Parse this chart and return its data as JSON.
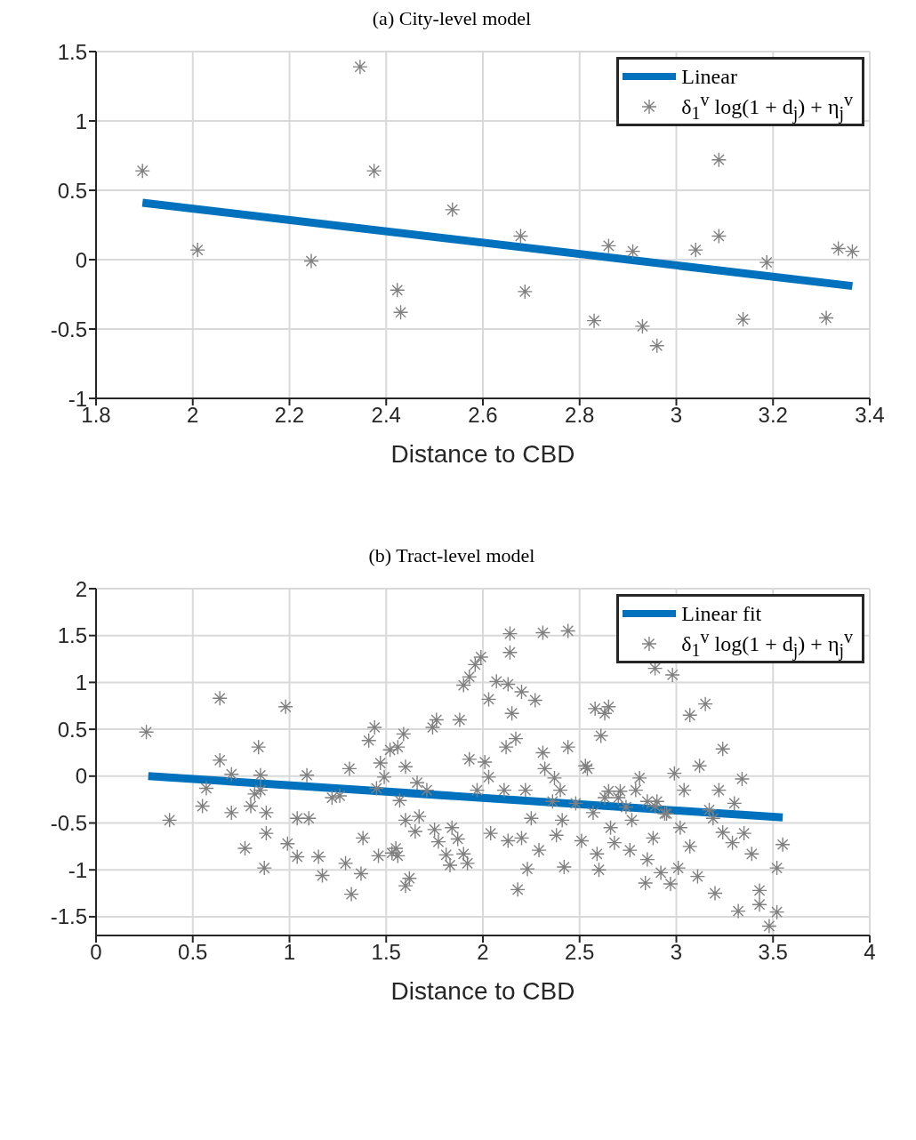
{
  "chart_data": [
    {
      "type": "scatter",
      "title": "(a) City-level model",
      "xlabel": "Distance to CBD",
      "xlim": [
        1.8,
        3.4
      ],
      "xticks": [
        1.8,
        2,
        2.2,
        2.4,
        2.6,
        2.8,
        3,
        3.2,
        3.4
      ],
      "ylim": [
        -1,
        1.5
      ],
      "yticks": [
        -1,
        -0.5,
        0,
        0.5,
        1,
        1.5
      ],
      "grid": true,
      "legend": "top right",
      "series": [
        {
          "name": "Linear",
          "type": "line",
          "color": "#0072bd",
          "line_style": "solid",
          "marker": "none",
          "x": [
            1.896,
            3.364
          ],
          "values": [
            0.41,
            -0.19
          ]
        },
        {
          "name": "δ$_{1}$$^{v}$ log(1 + d$_{j}$) + η$_{j}$$^{v}$",
          "color": "#808080",
          "marker": "cross",
          "x": [
            1.896,
            2.01,
            2.245,
            2.346,
            2.375,
            2.423,
            2.43,
            2.537,
            2.678,
            2.687,
            2.83,
            2.86,
            2.91,
            2.93,
            2.96,
            3.04,
            3.088,
            3.088,
            3.138,
            3.187,
            3.31,
            3.335,
            3.364
          ],
          "values": [
            0.64,
            0.07,
            -0.01,
            1.39,
            0.64,
            -0.22,
            -0.38,
            0.36,
            0.17,
            -0.23,
            -0.44,
            0.1,
            0.06,
            -0.48,
            -0.62,
            0.07,
            0.72,
            0.17,
            -0.43,
            -0.02,
            -0.42,
            0.08,
            0.06
          ]
        }
      ]
    },
    {
      "type": "scatter",
      "title": "(b) Tract-level model",
      "xlabel": "Distance to CBD",
      "xlim": [
        0,
        4
      ],
      "xticks": [
        0,
        0.5,
        1,
        1.5,
        2,
        2.5,
        3,
        3.5,
        4
      ],
      "ylim": [
        -1.7,
        2
      ],
      "yticks": [
        -1.5,
        -1,
        -0.5,
        0,
        0.5,
        1,
        1.5,
        2
      ],
      "grid": true,
      "legend": "top right",
      "series": [
        {
          "name": "Linear fit",
          "type": "line",
          "color": "#0072bd",
          "line_style": "solid",
          "marker": "none",
          "x": [
            0.27,
            3.55
          ],
          "values": [
            0,
            -0.44
          ]
        },
        {
          "name": "δ$_{1}$$^{v}$ log(1 + d$_{j}$) + η$_{j}$$^{v}$",
          "color": "#808080",
          "marker": "cross",
          "x": [
            0.26,
            0.38,
            0.55,
            0.57,
            0.64,
            0.64,
            0.7,
            0.7,
            0.77,
            0.8,
            0.82,
            0.84,
            0.85,
            0.85,
            0.87,
            0.88,
            0.88,
            0.98,
            0.99,
            1.04,
            1.04,
            1.09,
            1.1,
            1.15,
            1.17,
            1.22,
            1.26,
            1.31,
            1.32,
            1.29,
            1.37,
            1.38,
            1.41,
            1.44,
            1.45,
            1.46,
            1.47,
            1.49,
            1.52,
            1.53,
            1.55,
            1.56,
            1.57,
            1.56,
            1.59,
            1.6,
            1.6,
            1.62,
            1.65,
            1.66,
            1.6,
            1.67,
            1.74,
            1.76,
            1.71,
            1.75,
            1.77,
            1.81,
            1.83,
            1.87,
            1.88,
            1.9,
            1.9,
            1.92,
            1.93,
            1.96,
            1.99,
            2.01,
            2.03,
            2.04,
            2.03,
            2.07,
            2.11,
            2.12,
            2.13,
            2.13,
            2.14,
            2.14,
            2.15,
            2.17,
            2.18,
            2.2,
            2.2,
            2.22,
            2.23,
            2.25,
            2.27,
            2.29,
            2.31,
            2.31,
            2.32,
            2.36,
            2.37,
            2.38,
            2.41,
            2.42,
            2.44,
            2.44,
            2.48,
            2.51,
            2.53,
            2.54,
            2.57,
            2.58,
            2.59,
            2.6,
            2.61,
            2.63,
            2.63,
            2.65,
            2.66,
            2.68,
            2.71,
            2.74,
            2.76,
            2.77,
            2.79,
            2.81,
            2.84,
            2.85,
            2.88,
            2.89,
            2.9,
            2.92,
            2.94,
            2.97,
            2.98,
            2.99,
            3.01,
            3.02,
            3.04,
            3.07,
            3.07,
            3.11,
            3.12,
            3.15,
            3.17,
            3.19,
            3.2,
            3.22,
            3.24,
            3.24,
            3.29,
            3.3,
            3.32,
            3.34,
            3.35,
            3.39,
            3.43,
            3.43,
            3.48,
            3.52,
            3.52,
            3.55,
            2.65,
            2.7,
            2.85,
            2.89,
            2.95,
            2.4,
            1.93,
            1.97,
            1.84
          ],
          "values": [
            0.47,
            -0.47,
            -0.32,
            -0.13,
            0.83,
            0.17,
            0.02,
            -0.39,
            -0.77,
            -0.32,
            -0.19,
            0.31,
            -0.15,
            0.01,
            -0.98,
            -0.39,
            -0.61,
            0.74,
            -0.72,
            -0.45,
            -0.86,
            0.01,
            -0.45,
            -0.86,
            -1.06,
            -0.23,
            -0.21,
            0.08,
            -1.26,
            -0.93,
            -1.04,
            -0.66,
            0.38,
            0.52,
            -0.13,
            -0.85,
            0.14,
            -0.01,
            0.28,
            -0.82,
            -0.77,
            0.31,
            -0.26,
            -0.85,
            0.45,
            0.1,
            -0.47,
            -1.09,
            -0.59,
            -0.07,
            -1.17,
            -0.43,
            0.52,
            0.6,
            -0.15,
            -0.57,
            -0.7,
            -0.84,
            -0.95,
            -0.67,
            0.6,
            -0.83,
            0.97,
            -0.93,
            1.06,
            1.19,
            1.27,
            0.15,
            -0.01,
            -0.61,
            0.82,
            1.01,
            -0.15,
            0.31,
            -0.69,
            0.98,
            1.52,
            1.32,
            0.67,
            0.4,
            -1.21,
            0.9,
            -0.66,
            -0.15,
            -0.99,
            -0.45,
            0.81,
            -0.79,
            1.53,
            0.25,
            0.08,
            -0.27,
            -0.02,
            -0.63,
            -0.47,
            -0.97,
            1.55,
            0.31,
            -0.29,
            -0.69,
            0.11,
            0.08,
            -0.39,
            0.72,
            -0.83,
            -1,
            0.43,
            0.67,
            -0.23,
            0.74,
            -0.55,
            -0.71,
            -0.16,
            -0.33,
            -0.79,
            -0.47,
            -0.15,
            -0.02,
            -1.14,
            -0.89,
            -0.66,
            1.15,
            -0.27,
            -1.03,
            -0.4,
            -1.15,
            1.08,
            0.03,
            -0.98,
            -0.55,
            -0.15,
            0.65,
            -0.75,
            -1.07,
            0.11,
            0.77,
            -0.36,
            -0.45,
            -1.25,
            -0.15,
            0.29,
            -0.6,
            -0.71,
            -0.29,
            -1.44,
            -0.03,
            -0.61,
            -0.83,
            -1.22,
            -1.37,
            -1.6,
            -0.98,
            -1.45,
            -0.73,
            -0.16,
            -0.23,
            -0.27,
            -0.32,
            -0.4,
            -0.15,
            0.18,
            -0.15,
            -0.55
          ]
        }
      ]
    }
  ]
}
